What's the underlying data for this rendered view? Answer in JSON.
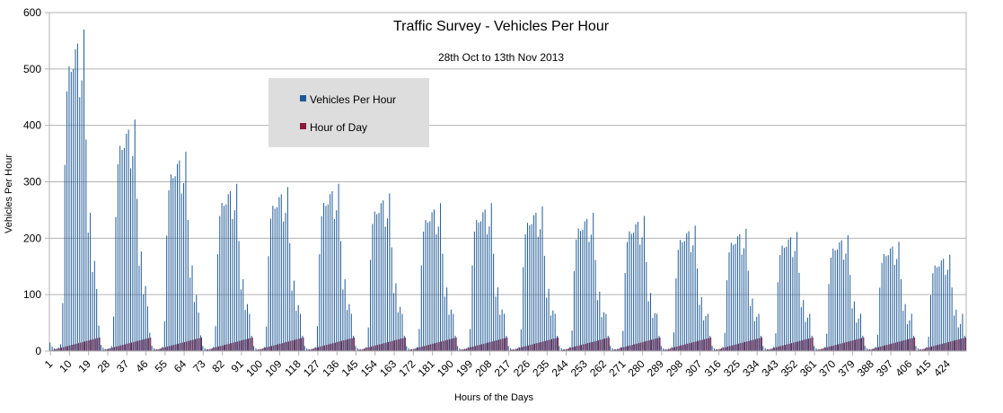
{
  "chart_data": {
    "type": "bar",
    "title": "Traffic Survey - Vehicles Per Hour",
    "subtitle": "28th Oct to 13th Nov 2013",
    "xlabel": "Hours of the Days",
    "ylabel": "Vehicles Per Hour",
    "ylim": [
      0,
      600
    ],
    "yticks": [
      0,
      100,
      200,
      300,
      400,
      500,
      600
    ],
    "xlim": [
      1,
      432
    ],
    "x_tick_labels": [
      "1",
      "10",
      "19",
      "28",
      "37",
      "46",
      "55",
      "64",
      "73",
      "82",
      "91",
      "100",
      "109",
      "118",
      "127",
      "136",
      "145",
      "154",
      "163",
      "172",
      "181",
      "190",
      "199",
      "208",
      "217",
      "226",
      "235",
      "244",
      "253",
      "262",
      "271",
      "280",
      "289",
      "298",
      "307",
      "316",
      "325",
      "334",
      "343",
      "352",
      "361",
      "370",
      "379",
      "388",
      "397",
      "406",
      "415",
      "424"
    ],
    "grid": "horizontal",
    "legend_position": "upper-center-left",
    "colors": {
      "vehicles": "#1f5a96",
      "hour_of_day": "#8b1a3a",
      "grid": "#b3b3b3",
      "legend_bg": "#dddddd"
    },
    "series": [
      {
        "name": "Vehicles Per Hour",
        "daily_profile": [
          15,
          8,
          5,
          4,
          6,
          12,
          85,
          330,
          460,
          505,
          495,
          500,
          535,
          545,
          450,
          480,
          570,
          375,
          210,
          245,
          140,
          160,
          110,
          45
        ],
        "day_scales": [
          1.0,
          0.72,
          0.62,
          0.52,
          0.51,
          0.52,
          0.49,
          0.46,
          0.46,
          0.45,
          0.43,
          0.42,
          0.39,
          0.38,
          0.37,
          0.36,
          0.34,
          0.3
        ]
      },
      {
        "name": "Hour of Day",
        "pattern": "1 to 24 repeating each day"
      }
    ]
  }
}
